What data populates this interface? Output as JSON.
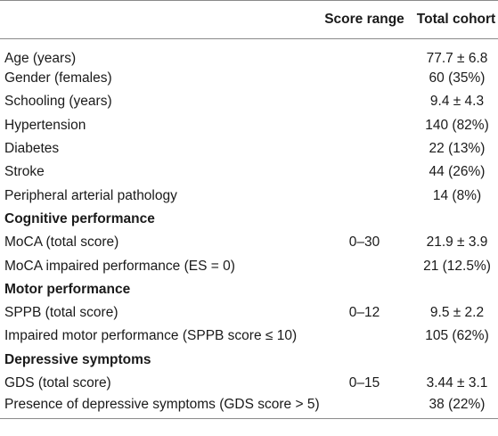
{
  "table": {
    "headers": {
      "label": "",
      "range": "Score range",
      "total": "Total cohort"
    },
    "rows": [
      {
        "type": "data",
        "label": "Age (years)",
        "range": "",
        "total": "77.7 ± 6.8"
      },
      {
        "type": "data",
        "label": "Gender (females)",
        "range": "",
        "total": "60 (35%)"
      },
      {
        "type": "data",
        "label": "Schooling (years)",
        "range": "",
        "total": "9.4 ± 4.3"
      },
      {
        "type": "data",
        "label": "Hypertension",
        "range": "",
        "total": "140 (82%)"
      },
      {
        "type": "data",
        "label": "Diabetes",
        "range": "",
        "total": "22 (13%)"
      },
      {
        "type": "data",
        "label": "Stroke",
        "range": "",
        "total": "44 (26%)"
      },
      {
        "type": "data",
        "label": "Peripheral arterial pathology",
        "range": "",
        "total": "14 (8%)"
      },
      {
        "type": "section",
        "label": "Cognitive performance",
        "range": "",
        "total": ""
      },
      {
        "type": "data",
        "label": "MoCA (total score)",
        "range": "0–30",
        "total": "21.9 ± 3.9"
      },
      {
        "type": "data",
        "label": "MoCA impaired performance (ES = 0)",
        "range": "",
        "total": "21 (12.5%)"
      },
      {
        "type": "section",
        "label": "Motor performance",
        "range": "",
        "total": ""
      },
      {
        "type": "data",
        "label": "SPPB (total score)",
        "range": "0–12",
        "total": "9.5 ± 2.2"
      },
      {
        "type": "data",
        "label": "Impaired motor performance (SPPB score ≤ 10)",
        "range": "",
        "total": "105 (62%)"
      },
      {
        "type": "section",
        "label": "Depressive symptoms",
        "range": "",
        "total": ""
      },
      {
        "type": "data",
        "label": "GDS (total score)",
        "range": "0–15",
        "total": "3.44 ± 3.1"
      },
      {
        "type": "data",
        "label": "Presence of depressive symptoms (GDS score > 5)",
        "range": "",
        "total": "38 (22%)"
      }
    ]
  }
}
